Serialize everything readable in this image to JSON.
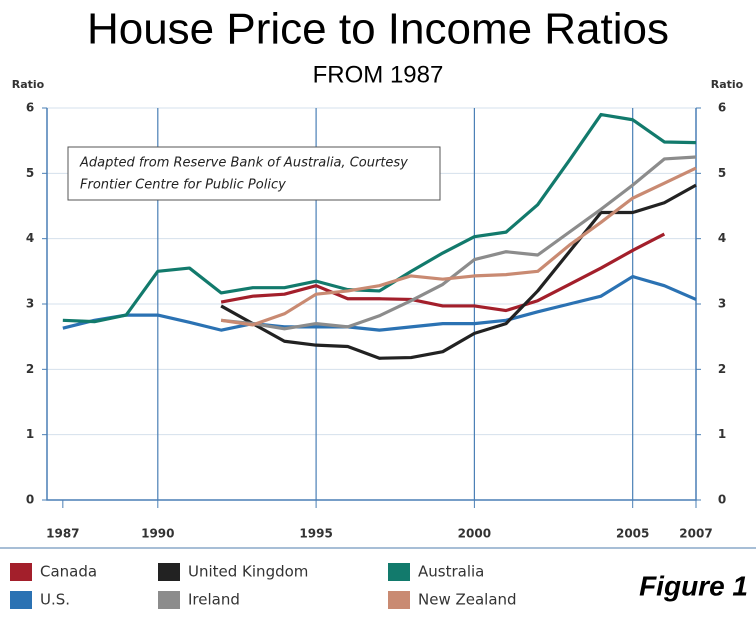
{
  "chart_data": {
    "type": "line",
    "title": "House Price to Income Ratios",
    "subtitle": "FROM 1987",
    "y_label": "Ratio",
    "annotation": [
      "Adapted from Reserve Bank of Australia, Courtesy",
      "Frontier Centre for Public Policy"
    ],
    "figure_label": "Figure 1",
    "x": [
      1987,
      1988,
      1989,
      1990,
      1991,
      1992,
      1993,
      1994,
      1995,
      1996,
      1997,
      1998,
      1999,
      2000,
      2001,
      2002,
      2003,
      2004,
      2005,
      2006,
      2007
    ],
    "xlim": [
      1986.5,
      2007
    ],
    "xticks": [
      1987,
      1990,
      1995,
      2000,
      2005,
      2007
    ],
    "xtick_colors": [
      "#a0202a",
      "#333333",
      "#333333",
      "#333333",
      "#333333",
      "#a0202a"
    ],
    "ylim": [
      0,
      6
    ],
    "yticks": [
      0,
      1,
      2,
      3,
      4,
      5,
      6
    ],
    "grid": true,
    "series": [
      {
        "name": "Canada",
        "color": "#a31f2b",
        "values": [
          null,
          null,
          null,
          null,
          null,
          3.03,
          3.12,
          3.15,
          3.28,
          3.08,
          3.08,
          3.07,
          2.97,
          2.97,
          2.9,
          3.05,
          3.3,
          3.55,
          3.82,
          4.07,
          null
        ]
      },
      {
        "name": "U.S.",
        "color": "#2b72b3",
        "values": [
          2.63,
          2.75,
          2.83,
          2.83,
          2.72,
          2.6,
          2.7,
          2.65,
          2.65,
          2.65,
          2.6,
          2.65,
          2.7,
          2.7,
          2.75,
          2.88,
          3.0,
          3.12,
          3.42,
          3.28,
          3.07
        ]
      },
      {
        "name": "United Kingdom",
        "color": "#222222",
        "values": [
          null,
          null,
          null,
          null,
          null,
          2.97,
          2.7,
          2.43,
          2.37,
          2.35,
          2.17,
          2.18,
          2.27,
          2.55,
          2.7,
          3.2,
          3.8,
          4.4,
          4.4,
          4.55,
          4.82
        ]
      },
      {
        "name": "Ireland",
        "color": "#8c8c8c",
        "values": [
          null,
          null,
          null,
          null,
          null,
          2.75,
          2.7,
          2.62,
          2.7,
          2.65,
          2.82,
          3.05,
          3.3,
          3.68,
          3.8,
          3.75,
          4.1,
          4.45,
          4.82,
          5.22,
          5.25
        ]
      },
      {
        "name": "Australia",
        "color": "#127a6c",
        "values": [
          2.75,
          2.73,
          2.83,
          3.5,
          3.55,
          3.17,
          3.25,
          3.25,
          3.35,
          3.22,
          3.2,
          3.5,
          3.78,
          4.03,
          4.1,
          4.52,
          5.2,
          5.9,
          5.82,
          5.48,
          5.47
        ]
      },
      {
        "name": "New Zealand",
        "color": "#c98a72",
        "values": [
          null,
          null,
          null,
          null,
          null,
          2.75,
          2.68,
          2.85,
          3.15,
          3.2,
          3.28,
          3.43,
          3.38,
          3.43,
          3.45,
          3.5,
          3.9,
          4.25,
          4.62,
          4.85,
          5.08
        ]
      }
    ]
  }
}
